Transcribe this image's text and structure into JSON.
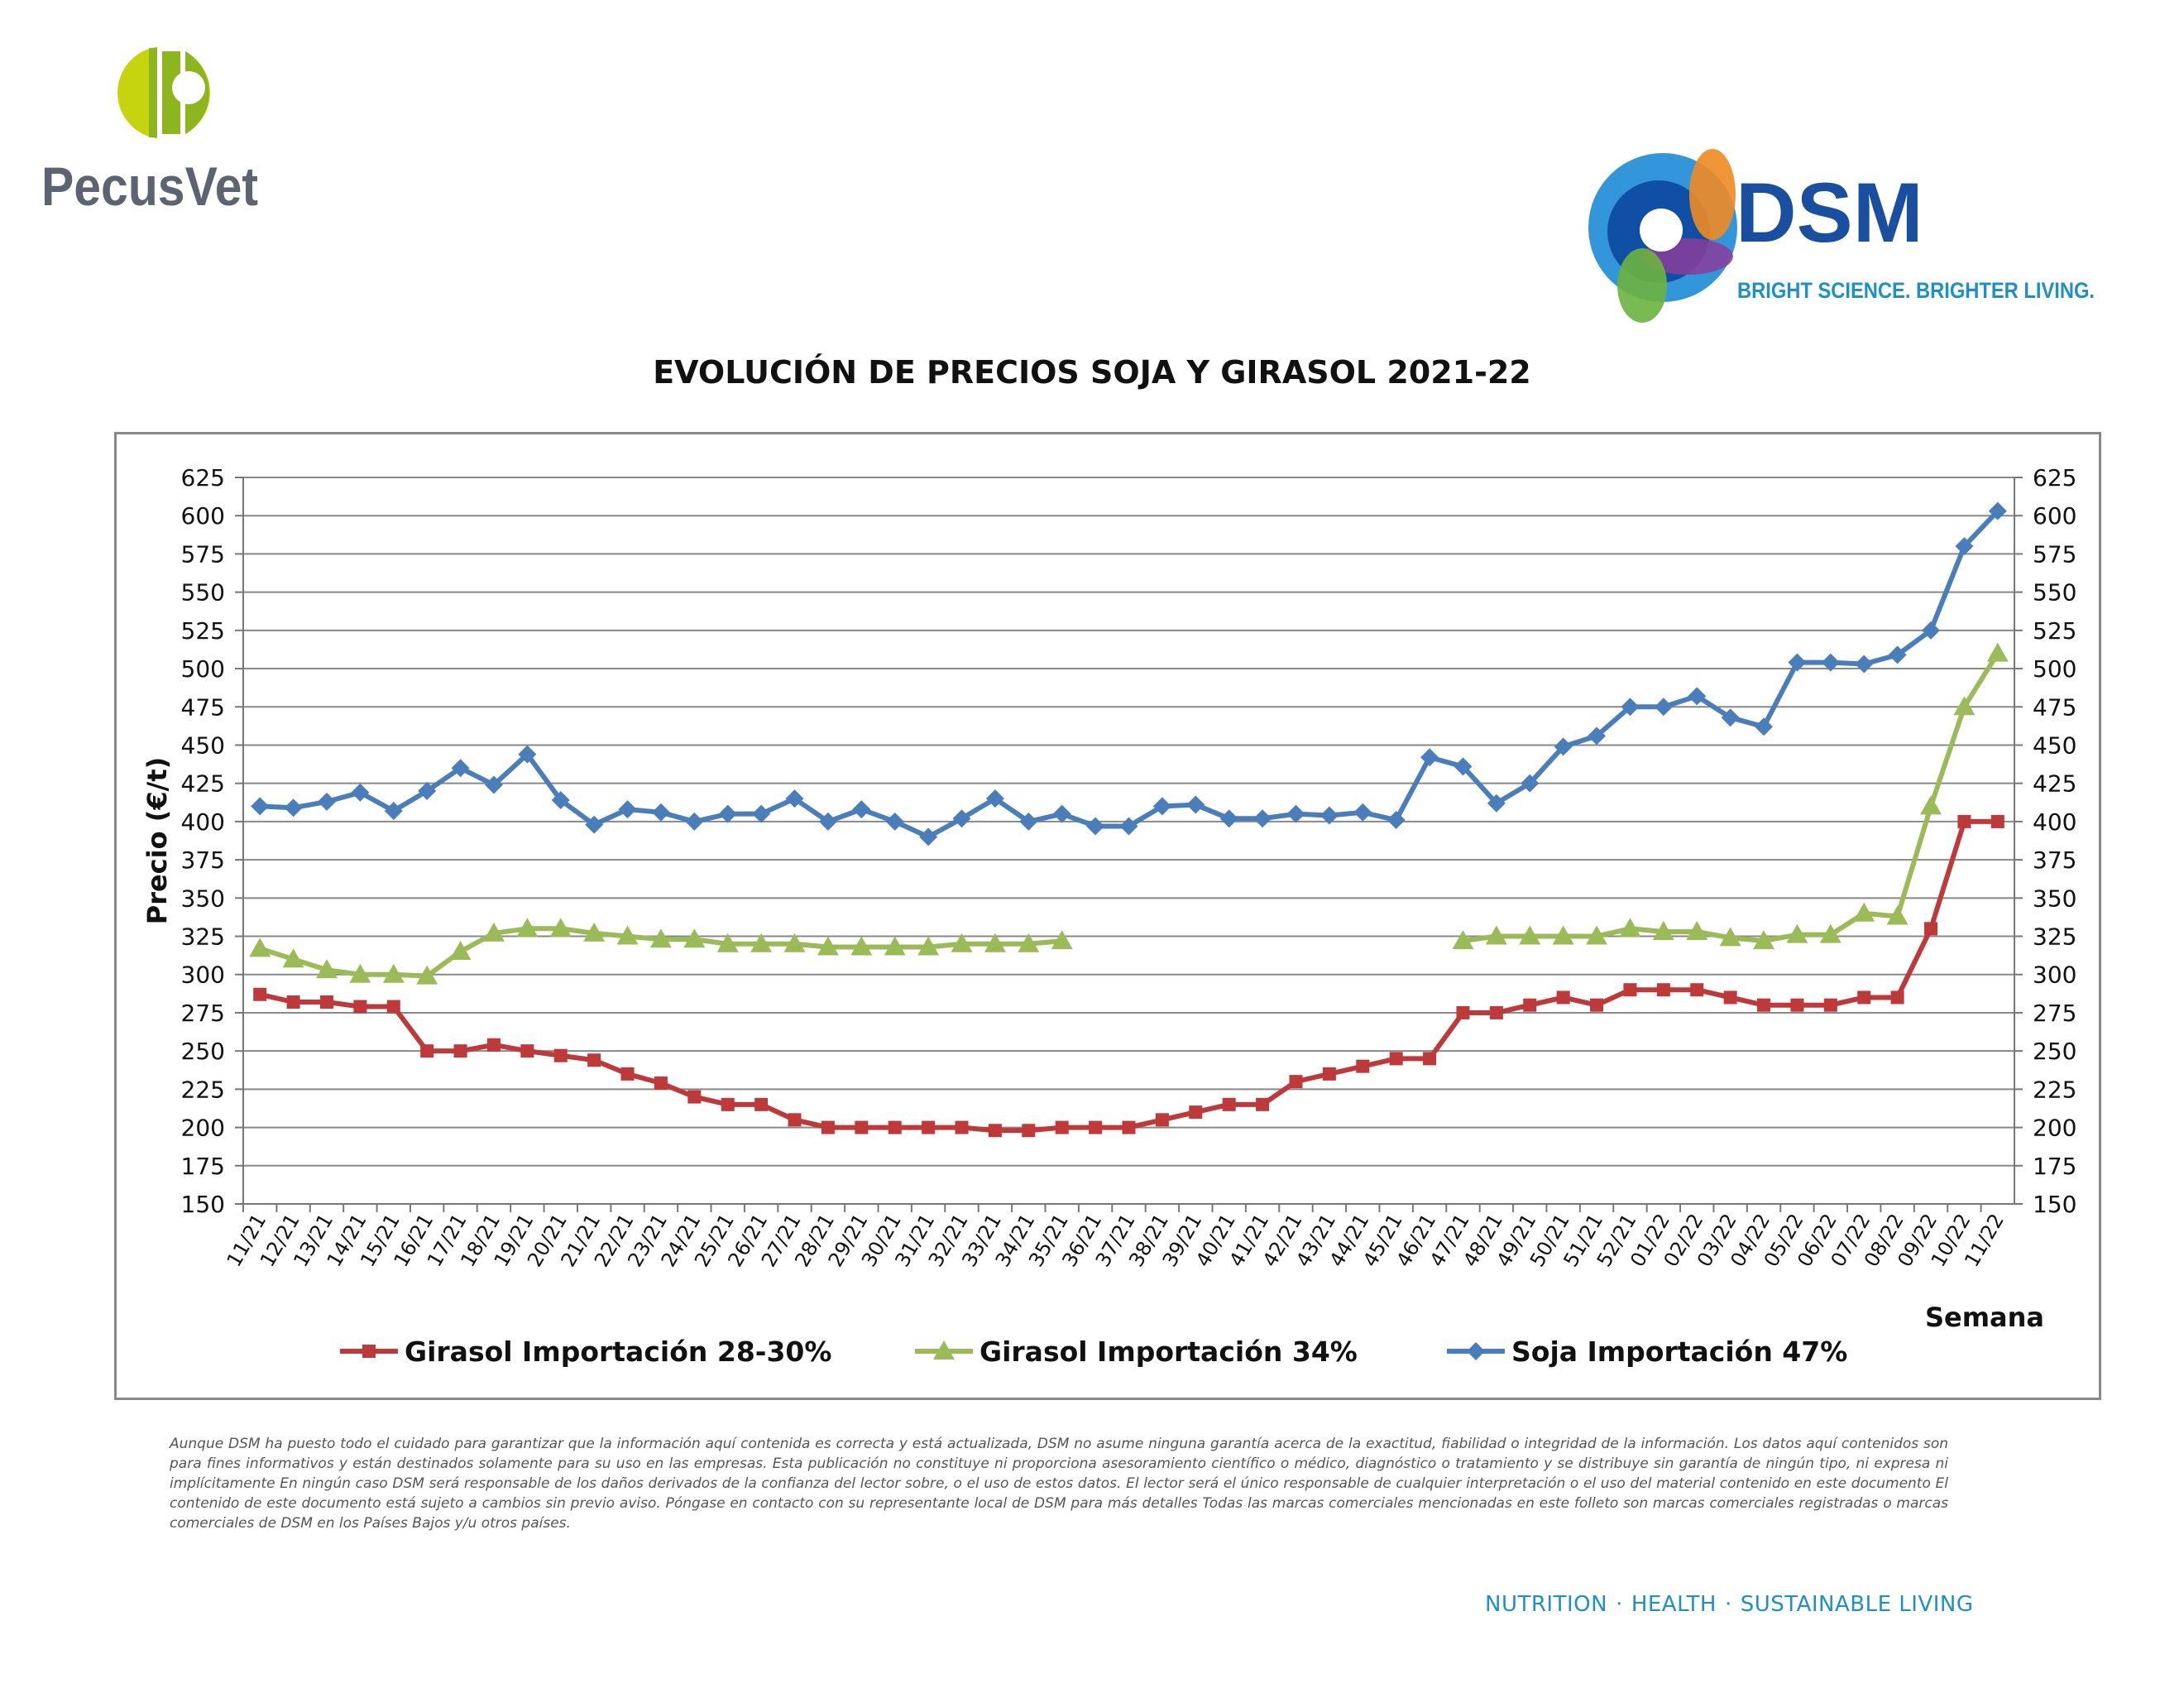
{
  "logos": {
    "left_name": "PecusVet",
    "right_name": "DSM",
    "right_tagline": "BRIGHT SCIENCE. BRIGHTER LIVING."
  },
  "colors": {
    "girasol_28": "#be3a3a",
    "girasol_34": "#9bbb59",
    "soja_47": "#4a7ebb",
    "grid": "#888888",
    "footer": "#1e8fc7",
    "dsm_blue": "#1a4fa0"
  },
  "chart_data": {
    "type": "line",
    "title": "EVOLUCIÓN DE PRECIOS SOJA Y GIRASOL 2021-22",
    "xlabel": "Semana",
    "ylabel": "Precio (€/t)",
    "ylim": [
      150,
      625
    ],
    "yticks": [
      150,
      175,
      200,
      225,
      250,
      275,
      300,
      325,
      350,
      375,
      400,
      425,
      450,
      475,
      500,
      525,
      550,
      575,
      600,
      625
    ],
    "grid": true,
    "legend_position": "bottom",
    "categories": [
      "11/21",
      "12/21",
      "13/21",
      "14/21",
      "15/21",
      "16/21",
      "17/21",
      "18/21",
      "19/21",
      "20/21",
      "21/21",
      "22/21",
      "23/21",
      "24/21",
      "25/21",
      "26/21",
      "27/21",
      "28/21",
      "29/21",
      "30/21",
      "31/21",
      "32/21",
      "33/21",
      "34/21",
      "35/21",
      "36/21",
      "37/21",
      "38/21",
      "39/21",
      "40/21",
      "41/21",
      "42/21",
      "43/21",
      "44/21",
      "45/21",
      "46/21",
      "47/21",
      "48/21",
      "49/21",
      "50/21",
      "51/21",
      "52/21",
      "01/22",
      "02/22",
      "03/22",
      "04/22",
      "05/22",
      "06/22",
      "07/22",
      "08/22",
      "09/22",
      "10/22",
      "11/22"
    ],
    "series": [
      {
        "name": "Girasol Importación 28-30%",
        "marker": "square",
        "values": [
          287,
          282,
          282,
          279,
          279,
          250,
          250,
          254,
          250,
          247,
          244,
          235,
          229,
          220,
          215,
          215,
          205,
          200,
          200,
          200,
          200,
          200,
          198,
          198,
          200,
          200,
          200,
          205,
          210,
          215,
          215,
          230,
          235,
          240,
          245,
          245,
          275,
          275,
          280,
          285,
          280,
          290,
          290,
          290,
          285,
          280,
          280,
          280,
          285,
          285,
          330,
          400,
          400
        ]
      },
      {
        "name": "Girasol Importación 34%",
        "marker": "triangle",
        "values": [
          317,
          310,
          303,
          300,
          300,
          299,
          315,
          327,
          330,
          330,
          327,
          325,
          323,
          323,
          320,
          320,
          320,
          318,
          318,
          318,
          318,
          320,
          320,
          320,
          322,
          null,
          null,
          null,
          null,
          null,
          null,
          null,
          null,
          null,
          null,
          null,
          322,
          325,
          325,
          325,
          325,
          330,
          328,
          328,
          324,
          322,
          326,
          326,
          340,
          338,
          410,
          475,
          510
        ]
      },
      {
        "name": "Soja Importación 47%",
        "marker": "diamond",
        "values": [
          410,
          409,
          413,
          419,
          407,
          420,
          435,
          424,
          444,
          414,
          398,
          408,
          406,
          400,
          405,
          405,
          415,
          400,
          408,
          400,
          390,
          402,
          415,
          400,
          405,
          397,
          397,
          410,
          411,
          402,
          402,
          405,
          404,
          406,
          401,
          442,
          436,
          412,
          425,
          449,
          456,
          475,
          475,
          482,
          468,
          462,
          504,
          504,
          503,
          509,
          525,
          580,
          603
        ]
      }
    ]
  },
  "disclaimer": "Aunque DSM ha puesto todo el cuidado para garantizar que la información aquí contenida es correcta y está actualizada, DSM no asume ninguna garantía acerca de la exactitud, fiabilidad o integridad de la información. Los datos aquí contenidos son para fines informativos y están destinados solamente para su uso en las empresas. Esta publicación no constituye ni proporciona asesoramiento científico o médico, diagnóstico o tratamiento y se distribuye sin garantía de ningún tipo, ni expresa ni implícitamente En ningún caso DSM será responsable de los daños derivados de la confianza del lector sobre, o el uso de estos datos. El lector será el único responsable de cualquier interpretación o el uso del material contenido en este documento El contenido de este documento está sujeto a cambios sin previo aviso. Póngase en contacto con su representante local de DSM para más detalles Todas las marcas comerciales mencionadas en este folleto son marcas comerciales registradas o marcas comerciales de DSM en los Países Bajos y/u otros países.",
  "footer": {
    "item1": "NUTRITION",
    "item2": "HEALTH",
    "item3": "SUSTAINABLE LIVING",
    "separator": "·"
  }
}
